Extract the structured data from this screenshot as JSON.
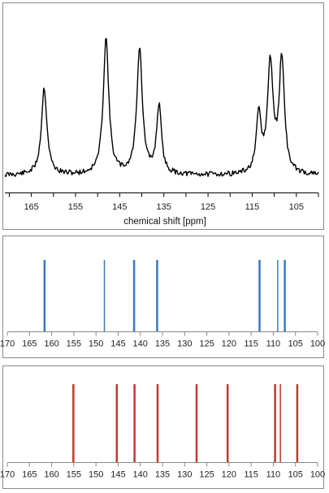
{
  "chart_data": [
    {
      "type": "line",
      "title": "",
      "xlabel": "chemical shift [ppm]",
      "ylabel": "",
      "xlim": [
        171,
        100
      ],
      "x_reversed": true,
      "grid": false,
      "x_ticks": [
        165,
        155,
        145,
        135,
        125,
        115,
        105
      ],
      "peaks": [
        {
          "ppm": 162.1,
          "height": 0.6,
          "width": 0.75
        },
        {
          "ppm": 148.1,
          "height": 0.94,
          "width": 0.75
        },
        {
          "ppm": 140.5,
          "height": 0.87,
          "width": 0.75
        },
        {
          "ppm": 136.1,
          "height": 0.47,
          "width": 0.65
        },
        {
          "ppm": 113.5,
          "height": 0.4,
          "width": 0.65
        },
        {
          "ppm": 110.9,
          "height": 0.75,
          "width": 0.75
        },
        {
          "ppm": 108.3,
          "height": 0.79,
          "width": 0.7
        }
      ]
    },
    {
      "type": "bar",
      "title": "",
      "xlabel": "",
      "ylabel": "",
      "xlim": [
        170,
        100
      ],
      "x_reversed": true,
      "color": "#3a78c2",
      "x_ticks": [
        170,
        165,
        160,
        155,
        150,
        145,
        140,
        135,
        130,
        125,
        120,
        115,
        110,
        105,
        100
      ],
      "lines": [
        161.6,
        148.1,
        141.4,
        136.2,
        113.1,
        109.0,
        107.4
      ],
      "line_widths": [
        2.5,
        1.5,
        2.5,
        2.5,
        2.5,
        1.5,
        2.5
      ]
    },
    {
      "type": "bar",
      "title": "",
      "xlabel": "",
      "ylabel": "",
      "xlim": [
        170,
        100
      ],
      "x_reversed": true,
      "color": "#c0392b",
      "x_ticks": [
        170,
        165,
        160,
        155,
        150,
        145,
        140,
        135,
        130,
        125,
        120,
        115,
        110,
        105,
        100
      ],
      "lines": [
        155.1,
        145.3,
        141.3,
        136.1,
        127.3,
        120.3,
        109.6,
        108.4,
        104.6
      ],
      "line_widths": [
        2.5,
        2.5,
        2.5,
        2.5,
        2.5,
        2.5,
        2.5,
        1.5,
        2.5
      ]
    }
  ]
}
